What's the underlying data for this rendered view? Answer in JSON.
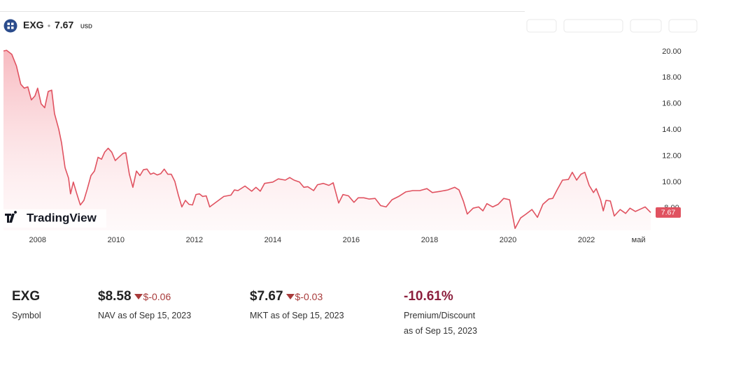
{
  "header": {
    "symbol": "EXG",
    "price": "7.67",
    "currency": "USD"
  },
  "chart_data": {
    "type": "line",
    "watermark": "TradingView",
    "x": [
      2007.13,
      2007.21,
      2007.34,
      2007.46,
      2007.57,
      2007.66,
      2007.75,
      2007.84,
      2007.93,
      2008.0,
      2008.09,
      2008.18,
      2008.27,
      2008.36,
      2008.43,
      2008.54,
      2008.61,
      2008.7,
      2008.79,
      2008.84,
      2008.91,
      2009.0,
      2009.09,
      2009.18,
      2009.27,
      2009.36,
      2009.45,
      2009.54,
      2009.63,
      2009.71,
      2009.8,
      2009.89,
      2009.98,
      2010.07,
      2010.18,
      2010.25,
      2010.34,
      2010.43,
      2010.52,
      2010.61,
      2010.7,
      2010.79,
      2010.88,
      2010.96,
      2011.05,
      2011.14,
      2011.23,
      2011.32,
      2011.41,
      2011.5,
      2011.59,
      2011.68,
      2011.77,
      2011.86,
      2011.95,
      2012.04,
      2012.13,
      2012.21,
      2012.3,
      2012.39,
      2012.57,
      2012.75,
      2012.93,
      2013.02,
      2013.11,
      2013.29,
      2013.46,
      2013.57,
      2013.68,
      2013.79,
      2014.0,
      2014.14,
      2014.32,
      2014.43,
      2014.54,
      2014.68,
      2014.79,
      2014.89,
      2015.04,
      2015.14,
      2015.29,
      2015.43,
      2015.54,
      2015.68,
      2015.79,
      2015.93,
      2016.07,
      2016.18,
      2016.32,
      2016.46,
      2016.61,
      2016.75,
      2016.89,
      2017.04,
      2017.21,
      2017.39,
      2017.57,
      2017.75,
      2017.93,
      2018.07,
      2018.29,
      2018.46,
      2018.64,
      2018.75,
      2018.86,
      2018.96,
      2019.11,
      2019.25,
      2019.36,
      2019.46,
      2019.61,
      2019.75,
      2019.89,
      2020.04,
      2020.18,
      2020.32,
      2020.46,
      2020.61,
      2020.75,
      2020.89,
      2021.04,
      2021.14,
      2021.25,
      2021.39,
      2021.54,
      2021.64,
      2021.75,
      2021.86,
      2021.96,
      2022.07,
      2022.18,
      2022.25,
      2022.36,
      2022.43,
      2022.5,
      2022.61,
      2022.71,
      2022.86,
      2023.0,
      2023.11,
      2023.25,
      2023.39,
      2023.5,
      2023.64
    ],
    "series": [
      {
        "color": "#e05260",
        "values": [
          20.05,
          20.1,
          19.8,
          18.9,
          17.5,
          17.2,
          17.3,
          16.3,
          16.6,
          17.2,
          16.0,
          15.7,
          16.95,
          17.05,
          15.25,
          14.05,
          13.0,
          11.1,
          10.3,
          9.1,
          10.0,
          9.1,
          8.25,
          8.6,
          9.5,
          10.5,
          10.85,
          11.9,
          11.75,
          12.3,
          12.6,
          12.3,
          11.65,
          11.9,
          12.2,
          12.25,
          10.6,
          9.6,
          10.85,
          10.5,
          10.95,
          11.0,
          10.6,
          10.7,
          10.55,
          10.65,
          11.0,
          10.6,
          10.6,
          10.05,
          9.0,
          8.1,
          8.6,
          8.3,
          8.25,
          9.05,
          9.1,
          8.9,
          8.95,
          8.1,
          8.5,
          8.9,
          9.0,
          9.4,
          9.35,
          9.7,
          9.3,
          9.6,
          9.3,
          9.9,
          10.0,
          10.25,
          10.15,
          10.35,
          10.15,
          10.0,
          9.6,
          9.65,
          9.35,
          9.8,
          9.9,
          9.75,
          9.95,
          8.4,
          9.05,
          8.95,
          8.45,
          8.8,
          8.8,
          8.7,
          8.75,
          8.2,
          8.1,
          8.65,
          8.9,
          9.25,
          9.35,
          9.35,
          9.5,
          9.2,
          9.3,
          9.4,
          9.6,
          9.4,
          8.55,
          7.55,
          8.0,
          8.1,
          7.8,
          8.35,
          8.1,
          8.3,
          8.75,
          8.65,
          6.45,
          7.25,
          7.55,
          7.9,
          7.3,
          8.3,
          8.7,
          8.75,
          9.4,
          10.15,
          10.2,
          10.75,
          10.15,
          10.6,
          10.75,
          9.75,
          9.2,
          9.5,
          8.65,
          7.8,
          8.6,
          8.55,
          7.4,
          7.9,
          7.6,
          8.0,
          7.75,
          7.95,
          8.1,
          7.67
        ]
      }
    ],
    "xlim": [
      2007.04,
      2023.73
    ],
    "xticks": [
      2008,
      2010,
      2012,
      2014,
      2016,
      2018,
      2020,
      2022,
      {
        "value": 2023.33,
        "label": "май"
      }
    ],
    "ylim": [
      6.3,
      20.8
    ],
    "yticks": [
      {
        "value": 8,
        "label": "8.00"
      },
      {
        "value": 10,
        "label": "10.00"
      },
      {
        "value": 12,
        "label": "12.00"
      },
      {
        "value": 14,
        "label": "14.00"
      },
      {
        "value": 16,
        "label": "16.00"
      },
      {
        "value": 18,
        "label": "18.00"
      },
      {
        "value": 20,
        "label": "20.00"
      }
    ],
    "grid": false
  },
  "stats": [
    {
      "value": "EXG",
      "label": "Symbol"
    },
    {
      "value": "$8.58",
      "change": "$-0.06",
      "label": "NAV as of Sep 15, 2023"
    },
    {
      "value": "$7.67",
      "change": "$-0.03",
      "label": "MKT as of Sep 15, 2023"
    },
    {
      "value": "-10.61%",
      "label": "Premium/Discount",
      "sublabel": "as of Sep 15, 2023"
    }
  ]
}
